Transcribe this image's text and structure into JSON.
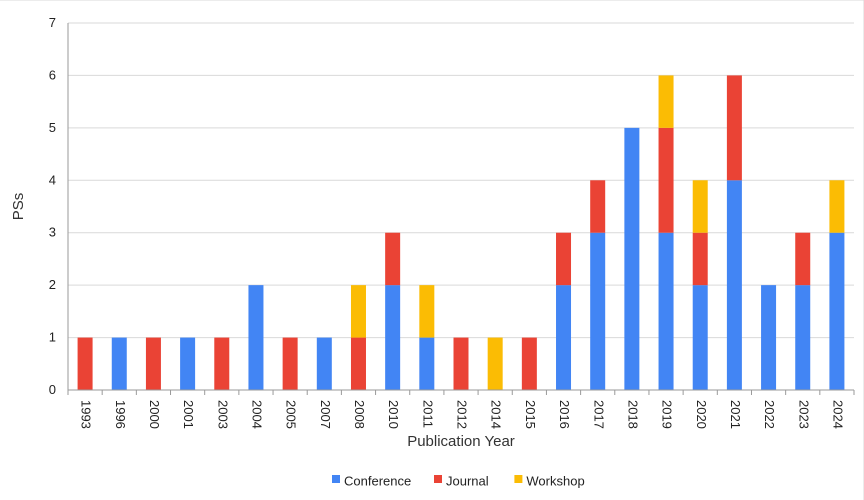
{
  "chart_data": {
    "type": "bar",
    "stacked": true,
    "categories": [
      "1993",
      "1996",
      "2000",
      "2001",
      "2003",
      "2004",
      "2005",
      "2007",
      "2008",
      "2010",
      "2011",
      "2012",
      "2014",
      "2015",
      "2016",
      "2017",
      "2018",
      "2019",
      "2020",
      "2021",
      "2022",
      "2023",
      "2024"
    ],
    "series": [
      {
        "name": "Conference",
        "color": "#4285F4",
        "values": [
          0,
          1,
          0,
          1,
          0,
          2,
          0,
          1,
          0,
          2,
          1,
          0,
          0,
          0,
          2,
          3,
          5,
          3,
          2,
          4,
          2,
          2,
          3
        ]
      },
      {
        "name": "Journal",
        "color": "#EA4335",
        "values": [
          1,
          0,
          1,
          0,
          1,
          0,
          1,
          0,
          1,
          1,
          0,
          1,
          0,
          1,
          1,
          1,
          0,
          2,
          1,
          2,
          0,
          1,
          0
        ]
      },
      {
        "name": "Workshop",
        "color": "#FBBC04",
        "values": [
          0,
          0,
          0,
          0,
          0,
          0,
          0,
          0,
          1,
          0,
          1,
          0,
          1,
          0,
          0,
          0,
          0,
          1,
          1,
          0,
          0,
          0,
          1
        ]
      }
    ],
    "xlabel": "Publication Year",
    "ylabel": "PSs",
    "ylim": [
      0,
      7
    ],
    "yticks": [
      0,
      1,
      2,
      3,
      4,
      5,
      6,
      7
    ],
    "grid": true,
    "legend_position": "bottom"
  }
}
